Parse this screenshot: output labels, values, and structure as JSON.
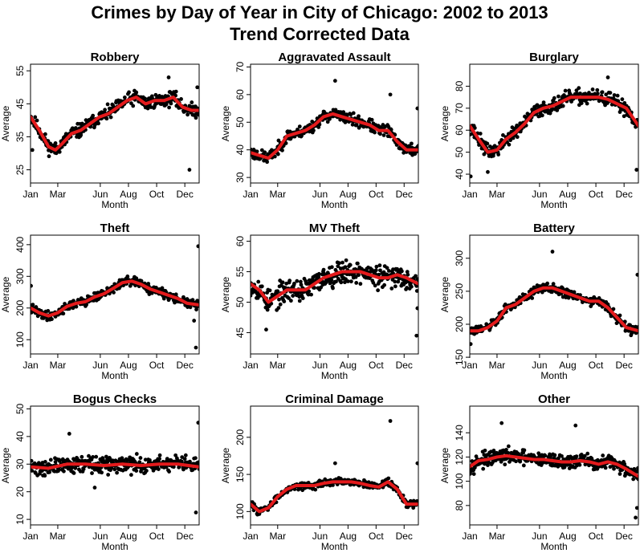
{
  "figure": {
    "title_line1": "Crimes by Day of Year in City of Chicago: 2002 to 2013",
    "title_line2": "Trend Corrected Data"
  },
  "colors": {
    "trend": "#e31a1c",
    "points": "#000000",
    "frame": "#000000"
  },
  "chart_data": [
    {
      "type": "scatter",
      "title": "Robbery",
      "xlabel": "Month",
      "ylabel": "Average",
      "x_ticks": [
        "Jan",
        "Mar",
        "Jun",
        "Aug",
        "Oct",
        "Dec"
      ],
      "x_tick_days": [
        1,
        60,
        152,
        213,
        274,
        335
      ],
      "xlim": [
        1,
        366
      ],
      "y_ticks": [
        25,
        35,
        45,
        55
      ],
      "ylim": [
        21,
        57
      ],
      "smooth": {
        "x": [
          1,
          20,
          40,
          55,
          70,
          90,
          110,
          130,
          150,
          170,
          190,
          210,
          230,
          250,
          270,
          290,
          310,
          330,
          350,
          366
        ],
        "y": [
          41,
          37,
          32,
          31,
          33,
          36,
          37,
          39,
          41,
          42,
          44,
          46,
          47,
          45,
          46,
          46,
          47,
          44,
          43,
          43
        ]
      },
      "noise": 1.8,
      "seed": 11,
      "outliers": [
        {
          "x": 5,
          "y": 31
        },
        {
          "x": 345,
          "y": 25
        },
        {
          "x": 362,
          "y": 50
        },
        {
          "x": 300,
          "y": 53
        }
      ]
    },
    {
      "type": "scatter",
      "title": "Aggravated Assault",
      "xlabel": "Month",
      "ylabel": "Average",
      "x_ticks": [
        "Jan",
        "Mar",
        "Jun",
        "Aug",
        "Oct",
        "Dec"
      ],
      "x_tick_days": [
        1,
        60,
        152,
        213,
        274,
        335
      ],
      "xlim": [
        1,
        366
      ],
      "y_ticks": [
        30,
        40,
        50,
        60,
        70
      ],
      "ylim": [
        28,
        71
      ],
      "smooth": {
        "x": [
          1,
          20,
          40,
          60,
          80,
          100,
          120,
          140,
          160,
          180,
          200,
          220,
          240,
          260,
          280,
          300,
          320,
          340,
          366
        ],
        "y": [
          39,
          38,
          37,
          40,
          45,
          46,
          47,
          49,
          52,
          53,
          52,
          51,
          50,
          49,
          47,
          47,
          43,
          40,
          40
        ]
      },
      "noise": 1.8,
      "seed": 23,
      "outliers": [
        {
          "x": 185,
          "y": 65
        },
        {
          "x": 305,
          "y": 60
        },
        {
          "x": 364,
          "y": 55
        }
      ]
    },
    {
      "type": "scatter",
      "title": "Burglary",
      "xlabel": "Month",
      "ylabel": "Average",
      "x_ticks": [
        "Jan",
        "Mar",
        "Jun",
        "Aug",
        "Oct",
        "Dec"
      ],
      "x_tick_days": [
        1,
        60,
        152,
        213,
        274,
        335
      ],
      "xlim": [
        1,
        366
      ],
      "y_ticks": [
        40,
        50,
        60,
        70,
        80
      ],
      "ylim": [
        36,
        90
      ],
      "smooth": {
        "x": [
          1,
          20,
          40,
          60,
          80,
          100,
          120,
          140,
          160,
          180,
          200,
          220,
          240,
          260,
          280,
          300,
          320,
          340,
          366
        ],
        "y": [
          62,
          56,
          50,
          51,
          56,
          59,
          63,
          68,
          70,
          71,
          73,
          75,
          75,
          75,
          75,
          74,
          72,
          70,
          62
        ]
      },
      "noise": 2.8,
      "seed": 37,
      "outliers": [
        {
          "x": 3,
          "y": 39
        },
        {
          "x": 40,
          "y": 41
        },
        {
          "x": 362,
          "y": 42
        },
        {
          "x": 300,
          "y": 84
        }
      ]
    },
    {
      "type": "scatter",
      "title": "Theft",
      "xlabel": "Month",
      "ylabel": "Average",
      "x_ticks": [
        "Jan",
        "Mar",
        "Jun",
        "Aug",
        "Oct",
        "Dec"
      ],
      "x_tick_days": [
        1,
        60,
        152,
        213,
        274,
        335
      ],
      "xlim": [
        1,
        366
      ],
      "y_ticks": [
        100,
        200,
        300,
        400
      ],
      "ylim": [
        55,
        430
      ],
      "smooth": {
        "x": [
          1,
          20,
          40,
          60,
          80,
          100,
          120,
          140,
          160,
          180,
          200,
          220,
          240,
          260,
          280,
          300,
          320,
          340,
          366
        ],
        "y": [
          200,
          185,
          175,
          185,
          205,
          215,
          220,
          235,
          245,
          262,
          280,
          285,
          275,
          260,
          250,
          240,
          230,
          215,
          210
        ]
      },
      "noise": 12,
      "seed": 41,
      "outliers": [
        {
          "x": 2,
          "y": 270
        },
        {
          "x": 364,
          "y": 395
        },
        {
          "x": 359,
          "y": 75
        },
        {
          "x": 355,
          "y": 160
        }
      ]
    },
    {
      "type": "scatter",
      "title": "MV Theft",
      "xlabel": "Month",
      "ylabel": "Average",
      "x_ticks": [
        "Jan",
        "Mar",
        "Jun",
        "Aug",
        "Oct",
        "Dec"
      ],
      "x_tick_days": [
        1,
        60,
        152,
        213,
        274,
        335
      ],
      "xlim": [
        1,
        366
      ],
      "y_ticks": [
        45,
        50,
        55,
        60
      ],
      "ylim": [
        41.5,
        61
      ],
      "smooth": {
        "x": [
          1,
          20,
          40,
          60,
          80,
          100,
          120,
          140,
          160,
          180,
          200,
          220,
          240,
          260,
          280,
          300,
          320,
          340,
          366
        ],
        "y": [
          53,
          52,
          50,
          51,
          52,
          52,
          52,
          53,
          54,
          54.5,
          55,
          55,
          55,
          54.5,
          54,
          54,
          54.5,
          54,
          53
        ]
      },
      "noise": 1.6,
      "seed": 53,
      "outliers": [
        {
          "x": 35,
          "y": 45.5
        },
        {
          "x": 362,
          "y": 44.5
        },
        {
          "x": 364,
          "y": 49
        }
      ]
    },
    {
      "type": "scatter",
      "title": "Battery",
      "xlabel": "Month",
      "ylabel": "Average",
      "x_ticks": [
        "Jan",
        "Mar",
        "Jun",
        "Aug",
        "Oct",
        "Dec"
      ],
      "x_tick_days": [
        1,
        60,
        152,
        213,
        274,
        335
      ],
      "xlim": [
        1,
        366
      ],
      "y_ticks": [
        150,
        200,
        250,
        300
      ],
      "ylim": [
        155,
        335
      ],
      "smooth": {
        "x": [
          1,
          20,
          40,
          60,
          80,
          100,
          120,
          140,
          160,
          180,
          200,
          220,
          240,
          260,
          280,
          300,
          320,
          340,
          366
        ],
        "y": [
          190,
          190,
          195,
          205,
          225,
          230,
          240,
          250,
          255,
          255,
          250,
          245,
          240,
          235,
          235,
          225,
          210,
          195,
          190
        ]
      },
      "noise": 6,
      "seed": 61,
      "outliers": [
        {
          "x": 180,
          "y": 310
        },
        {
          "x": 364,
          "y": 275
        },
        {
          "x": 3,
          "y": 170
        }
      ]
    },
    {
      "type": "scatter",
      "title": "Bogus Checks",
      "xlabel": "Month",
      "ylabel": "Average",
      "x_ticks": [
        "Jan",
        "Mar",
        "Jun",
        "Aug",
        "Oct",
        "Dec"
      ],
      "x_tick_days": [
        1,
        60,
        152,
        213,
        274,
        335
      ],
      "xlim": [
        1,
        366
      ],
      "y_ticks": [
        10,
        20,
        30,
        40,
        50
      ],
      "ylim": [
        8,
        51
      ],
      "smooth": {
        "x": [
          1,
          40,
          80,
          120,
          160,
          200,
          240,
          280,
          320,
          366
        ],
        "y": [
          29,
          28.5,
          30,
          30,
          29.5,
          30,
          29.5,
          30,
          30,
          29
        ]
      },
      "noise": 2.5,
      "seed": 71,
      "outliers": [
        {
          "x": 364,
          "y": 45
        },
        {
          "x": 359,
          "y": 12.5
        },
        {
          "x": 140,
          "y": 21.5
        },
        {
          "x": 85,
          "y": 41
        }
      ]
    },
    {
      "type": "scatter",
      "title": "Criminal Damage",
      "xlabel": "Month",
      "ylabel": "Average",
      "x_ticks": [
        "Jan",
        "Mar",
        "Jun",
        "Aug",
        "Oct",
        "Dec"
      ],
      "x_tick_days": [
        1,
        60,
        152,
        213,
        274,
        335
      ],
      "xlim": [
        1,
        366
      ],
      "y_ticks": [
        100,
        150,
        200
      ],
      "ylim": [
        82,
        242
      ],
      "smooth": {
        "x": [
          1,
          20,
          40,
          60,
          80,
          100,
          120,
          140,
          160,
          180,
          200,
          220,
          240,
          260,
          280,
          300,
          320,
          340,
          366
        ],
        "y": [
          110,
          100,
          105,
          120,
          130,
          135,
          135,
          135,
          138,
          140,
          140,
          140,
          138,
          135,
          133,
          140,
          130,
          110,
          110
        ]
      },
      "noise": 4,
      "seed": 83,
      "outliers": [
        {
          "x": 305,
          "y": 222
        },
        {
          "x": 185,
          "y": 165
        },
        {
          "x": 364,
          "y": 165
        }
      ]
    },
    {
      "type": "scatter",
      "title": "Other",
      "xlabel": "Month",
      "ylabel": "Average",
      "x_ticks": [
        "Jan",
        "Mar",
        "Jun",
        "Aug",
        "Oct",
        "Dec"
      ],
      "x_tick_days": [
        1,
        60,
        152,
        213,
        274,
        335
      ],
      "xlim": [
        1,
        366
      ],
      "y_ticks": [
        80,
        100,
        120,
        140
      ],
      "ylim": [
        64,
        162
      ],
      "smooth": {
        "x": [
          1,
          20,
          40,
          60,
          80,
          100,
          120,
          140,
          160,
          180,
          200,
          220,
          240,
          260,
          280,
          300,
          320,
          340,
          366
        ],
        "y": [
          112,
          117,
          118,
          120,
          121,
          120,
          119,
          118,
          118,
          117,
          116,
          116,
          117,
          116,
          114,
          116,
          114,
          110,
          104
        ]
      },
      "noise": 5,
      "seed": 97,
      "outliers": [
        {
          "x": 360,
          "y": 70
        },
        {
          "x": 363,
          "y": 78
        },
        {
          "x": 70,
          "y": 148
        },
        {
          "x": 230,
          "y": 146
        }
      ]
    }
  ]
}
